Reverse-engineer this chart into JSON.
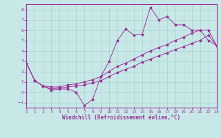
{
  "xlabel": "Windchill (Refroidissement éolien,°C)",
  "bg_color": "#c8e8e8",
  "grid_color": "#a8d0d0",
  "line_color": "#993399",
  "xlim": [
    0,
    23
  ],
  "ylim": [
    -1.5,
    8.5
  ],
  "xticks": [
    0,
    1,
    2,
    3,
    4,
    5,
    6,
    7,
    8,
    9,
    10,
    11,
    12,
    13,
    14,
    15,
    16,
    17,
    18,
    19,
    20,
    21,
    22,
    23
  ],
  "yticks": [
    -1,
    0,
    1,
    2,
    3,
    4,
    5,
    6,
    7,
    8
  ],
  "curve1_x": [
    0,
    1,
    2,
    3,
    4,
    5,
    6,
    7,
    8,
    9,
    10,
    11,
    12,
    13,
    14,
    15,
    16,
    17,
    18,
    19,
    20,
    21,
    22,
    23
  ],
  "curve1_y": [
    2.8,
    1.1,
    0.6,
    0.2,
    0.3,
    0.3,
    0.0,
    -1.3,
    -0.7,
    1.5,
    3.0,
    5.0,
    6.1,
    5.5,
    5.6,
    8.2,
    7.0,
    7.3,
    6.5,
    6.5,
    6.0,
    6.0,
    5.0,
    4.5
  ],
  "curve2_x": [
    0,
    1,
    2,
    3,
    4,
    5,
    6,
    7,
    8,
    9,
    10,
    11,
    12,
    13,
    14,
    15,
    16,
    17,
    18,
    19,
    20,
    21,
    22,
    23
  ],
  "curve2_y": [
    2.8,
    1.1,
    0.6,
    0.5,
    0.5,
    0.7,
    0.8,
    1.0,
    1.2,
    1.5,
    2.0,
    2.5,
    2.8,
    3.2,
    3.6,
    4.0,
    4.3,
    4.6,
    5.0,
    5.3,
    5.7,
    6.0,
    6.0,
    4.5
  ],
  "curve3_x": [
    0,
    1,
    2,
    3,
    4,
    5,
    6,
    7,
    8,
    9,
    10,
    11,
    12,
    13,
    14,
    15,
    16,
    17,
    18,
    19,
    20,
    21,
    22,
    23
  ],
  "curve3_y": [
    2.8,
    1.1,
    0.6,
    0.3,
    0.4,
    0.5,
    0.6,
    0.7,
    0.9,
    1.1,
    1.5,
    1.9,
    2.2,
    2.5,
    2.9,
    3.2,
    3.5,
    3.8,
    4.1,
    4.4,
    4.7,
    5.0,
    5.5,
    4.5
  ]
}
